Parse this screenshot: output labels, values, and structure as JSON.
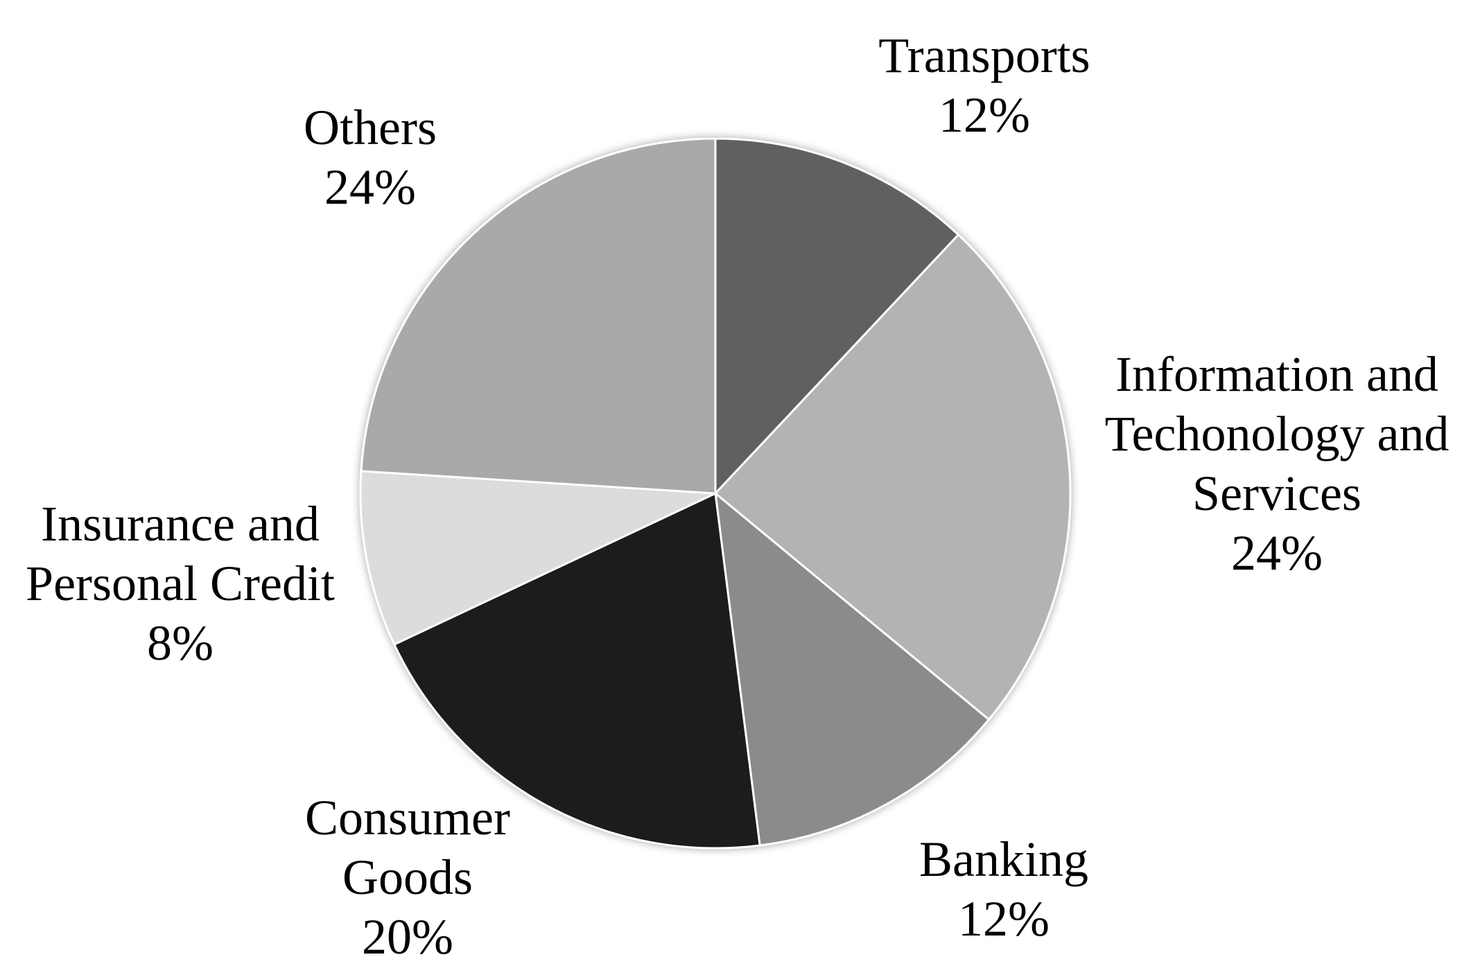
{
  "chart_data": {
    "type": "pie",
    "title": "",
    "start_angle_deg": 0,
    "direction": "clockwise",
    "slices": [
      {
        "name": "Transports",
        "label_lines": [
          "Transports"
        ],
        "value": 12,
        "value_label": "12%",
        "color": "#606060"
      },
      {
        "name": "Information and Techonology and Services",
        "label_lines": [
          "Information and",
          "Techonology and",
          "Services"
        ],
        "value": 24,
        "value_label": "24%",
        "color": "#b3b3b3"
      },
      {
        "name": "Banking",
        "label_lines": [
          "Banking"
        ],
        "value": 12,
        "value_label": "12%",
        "color": "#8b8b8b"
      },
      {
        "name": "Consumer Goods",
        "label_lines": [
          "Consumer",
          "Goods"
        ],
        "value": 20,
        "value_label": "20%",
        "color": "#1f1f1f"
      },
      {
        "name": "Insurance and Personal Credit",
        "label_lines": [
          "Insurance and",
          "Personal Credit"
        ],
        "value": 8,
        "value_label": "8%",
        "color": "#dcdcdc"
      },
      {
        "name": "Others",
        "label_lines": [
          "Others"
        ],
        "value": 24,
        "value_label": "24%",
        "color": "#a9a9a9"
      }
    ],
    "legend": "none",
    "data_labels": "outside"
  }
}
